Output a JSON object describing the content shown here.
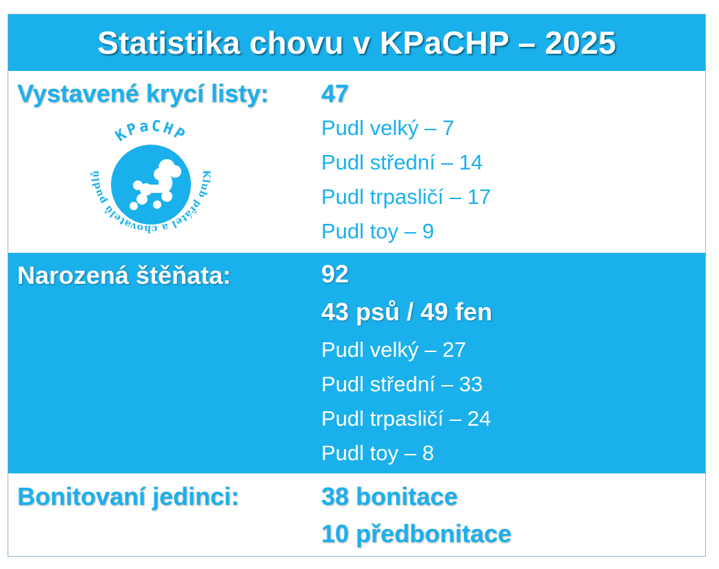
{
  "title": "Statistika chovu v KPaCHP – 2025",
  "colors": {
    "accent": "#1ab0ec",
    "text_on_accent": "#ffffff"
  },
  "sections": [
    {
      "label": "Vystavené krycí listy:",
      "total": "47",
      "items": [
        "Pudl velký –  7",
        "Pudl střední – 14",
        "Pudl trpasličí – 17",
        "Pudl toy – 9"
      ]
    },
    {
      "label": "Narozená štěňata:",
      "total": "92",
      "split": "43 psů / 49 fen",
      "items": [
        "Pudl velký –  27",
        "Pudl střední – 33",
        "Pudl trpasličí – 24",
        "Pudl toy – 8"
      ]
    },
    {
      "label": "Bonitovaní jedinci:",
      "lines": [
        "38 bonitace",
        "10 předbonitace"
      ]
    }
  ],
  "logo": {
    "icon": "poodle-logo-icon",
    "top_text": "KPaCHP",
    "ring_text": "Klub přátel a chovatelů pudlů"
  }
}
